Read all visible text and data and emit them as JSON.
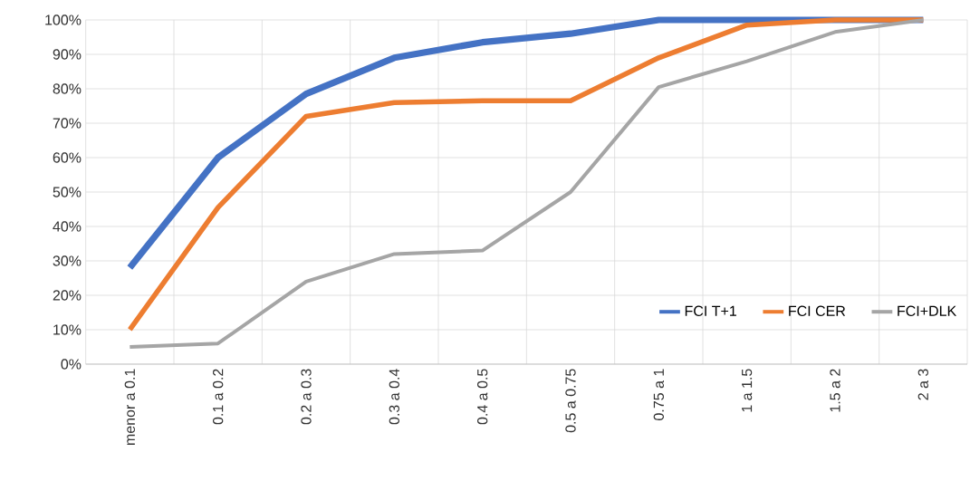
{
  "chart_data": {
    "type": "line",
    "categories": [
      "menor a 0.1",
      "0.1 a 0.2",
      "0.2 a 0.3",
      "0.3 a 0.4",
      "0.4 a 0.5",
      "0.5 a 0.75",
      "0.75 a 1",
      "1 a 1.5",
      "1.5 a 2",
      "2 a 3"
    ],
    "series": [
      {
        "name": "FCI T+1",
        "color": "#4472c4",
        "values": [
          28,
          60,
          78.5,
          89,
          93.5,
          96,
          100,
          100,
          100,
          100
        ]
      },
      {
        "name": "FCI CER",
        "color": "#ed7d31",
        "values": [
          10,
          45.5,
          72,
          76,
          76.5,
          76.5,
          89,
          98.5,
          100,
          100
        ]
      },
      {
        "name": "FCI+DLK",
        "color": "#a5a5a5",
        "values": [
          5,
          6,
          24,
          32,
          33,
          50,
          80.5,
          88,
          96.5,
          100
        ]
      }
    ],
    "ylim": [
      0,
      100
    ],
    "yticks": [
      {
        "value": 0,
        "label": "0%"
      },
      {
        "value": 10,
        "label": "10%"
      },
      {
        "value": 20,
        "label": "20%"
      },
      {
        "value": 30,
        "label": "30%"
      },
      {
        "value": 40,
        "label": "40%"
      },
      {
        "value": 50,
        "label": "50%"
      },
      {
        "value": 60,
        "label": "60%"
      },
      {
        "value": 70,
        "label": "70%"
      },
      {
        "value": 80,
        "label": "80%"
      },
      {
        "value": 90,
        "label": "90%"
      },
      {
        "value": 100,
        "label": "100%"
      }
    ],
    "grid": true,
    "legend": "bottom right",
    "marker": "none",
    "line_style": "solid"
  }
}
